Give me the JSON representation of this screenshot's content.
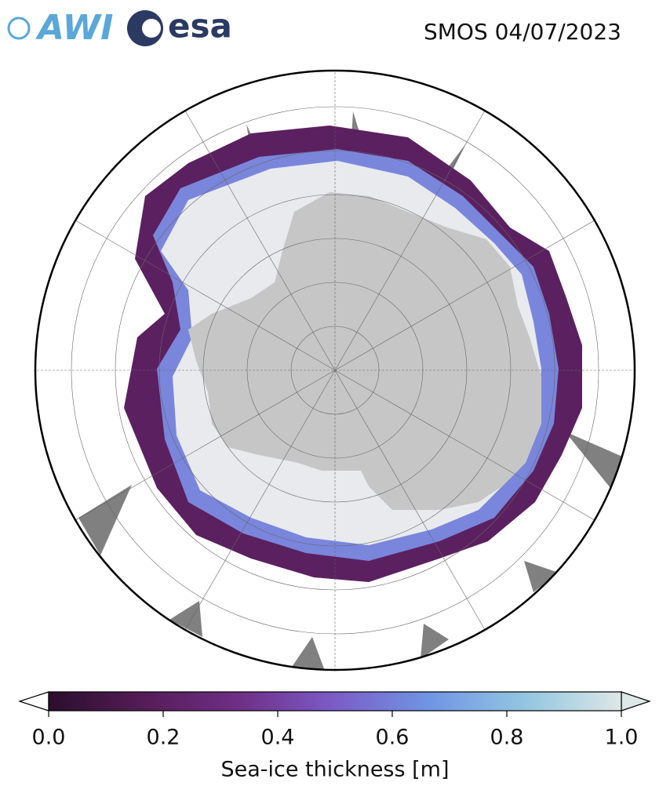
{
  "header": {
    "logos": [
      "AWI",
      "esa"
    ],
    "title": "SMOS 04/07/2023"
  },
  "colorbar": {
    "label": "Sea-ice thickness [m]",
    "lim": [
      0,
      1
    ],
    "ticks": [
      {
        "value": 0,
        "label": "0.0"
      },
      {
        "value": 0.2,
        "label": "0.2"
      },
      {
        "value": 0.4,
        "label": "0.4"
      },
      {
        "value": 0.6,
        "label": "0.6"
      },
      {
        "value": 0.8,
        "label": "0.8"
      },
      {
        "value": 1,
        "label": "1.0"
      }
    ],
    "colors": [
      "#2a0e2c",
      "#551c57",
      "#6f2f86",
      "#7b5cc8",
      "#6f96e4",
      "#93c6e0",
      "#dde7e6"
    ]
  }
}
